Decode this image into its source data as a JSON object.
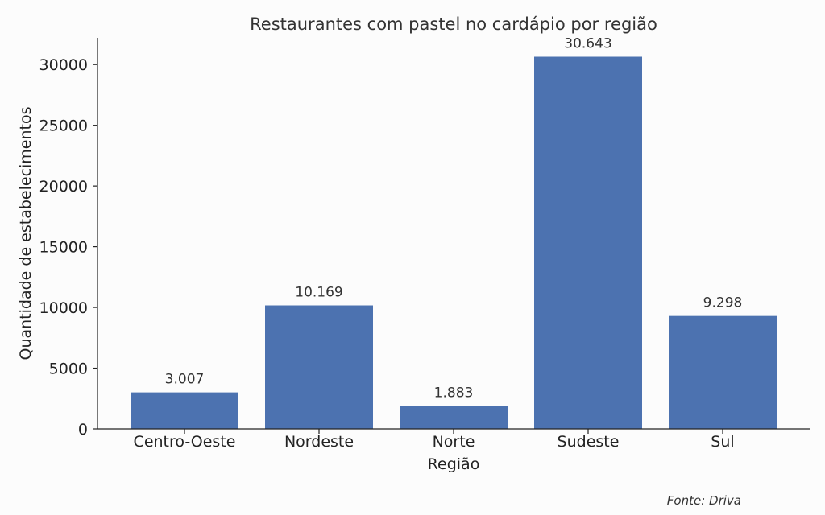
{
  "chart_data": {
    "type": "bar",
    "title": "Restaurantes com pastel no cardápio por região",
    "xlabel": "Região",
    "ylabel": "Quantidade de estabelecimentos",
    "categories": [
      "Centro-Oeste",
      "Nordeste",
      "Norte",
      "Sudeste",
      "Sul"
    ],
    "values": [
      3007,
      10169,
      1883,
      30643,
      9298
    ],
    "value_labels": [
      "3.007",
      "10.169",
      "1.883",
      "30.643",
      "9.298"
    ],
    "ylim": [
      0,
      32200
    ],
    "yticks": [
      0,
      5000,
      10000,
      15000,
      20000,
      25000,
      30000
    ],
    "ytick_labels": [
      "0",
      "5000",
      "10000",
      "15000",
      "20000",
      "25000",
      "30000"
    ],
    "bar_color": "#4c72b0",
    "grid": false,
    "legend": "none"
  },
  "source_note": "Fonte: Driva"
}
